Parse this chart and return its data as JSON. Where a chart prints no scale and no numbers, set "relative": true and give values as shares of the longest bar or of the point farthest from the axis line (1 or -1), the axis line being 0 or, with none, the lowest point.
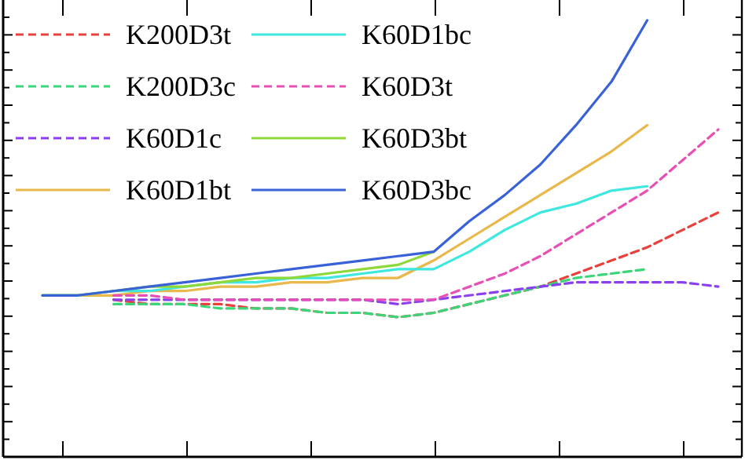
{
  "chart_data": {
    "type": "line",
    "relative": true,
    "legend": "top left",
    "categories": [
      null,
      null,
      null,
      null,
      null,
      null,
      null,
      null,
      null,
      null,
      null,
      null,
      null,
      null,
      null,
      null,
      null,
      null,
      null,
      null
    ],
    "series": [
      {
        "name": "K200D3t",
        "color": "#e8413c",
        "line_style": "dashed",
        "values": [
          null,
          null,
          0.36,
          0.35,
          0.35,
          0.35,
          0.34,
          0.34,
          0.33,
          0.33,
          0.32,
          0.33,
          0.35,
          0.37,
          0.39,
          0.42,
          0.45,
          0.48,
          0.52,
          0.56
        ]
      },
      {
        "name": "K200D3c",
        "color": "#3cd67a",
        "line_style": "dashed",
        "values": [
          null,
          null,
          0.35,
          0.35,
          0.35,
          0.34,
          0.34,
          0.34,
          0.33,
          0.33,
          0.32,
          0.33,
          0.35,
          0.37,
          0.39,
          0.41,
          0.42,
          0.43,
          null,
          null
        ]
      },
      {
        "name": "K60D1c",
        "color": "#8a3ff0",
        "line_style": "dashed",
        "values": [
          null,
          null,
          0.36,
          0.36,
          0.36,
          0.36,
          0.36,
          0.36,
          0.36,
          0.36,
          0.35,
          0.36,
          0.37,
          0.38,
          0.39,
          0.4,
          0.4,
          0.4,
          0.4,
          0.39
        ]
      },
      {
        "name": "K60D1bt",
        "color": "#e8b84a",
        "line_style": "solid",
        "values": [
          0.37,
          0.37,
          0.37,
          0.38,
          0.38,
          0.39,
          0.39,
          0.4,
          0.4,
          0.41,
          0.41,
          0.45,
          0.5,
          0.55,
          0.6,
          0.65,
          0.7,
          0.76,
          null,
          null
        ]
      },
      {
        "name": "K60D1bc",
        "color": "#3ee8e0",
        "line_style": "solid",
        "values": [
          0.37,
          0.37,
          0.38,
          0.38,
          0.39,
          0.4,
          0.4,
          0.41,
          0.41,
          0.42,
          0.43,
          0.43,
          0.47,
          0.52,
          0.56,
          0.58,
          0.61,
          0.62,
          null,
          null
        ]
      },
      {
        "name": "K60D3t",
        "color": "#e84fb5",
        "line_style": "dashed",
        "values": [
          null,
          null,
          0.37,
          0.37,
          0.36,
          0.36,
          0.36,
          0.36,
          0.36,
          0.36,
          0.36,
          0.36,
          0.39,
          0.42,
          0.46,
          0.51,
          0.56,
          0.61,
          0.68,
          0.75
        ]
      },
      {
        "name": "K60D3bt",
        "color": "#8ed83a",
        "line_style": "solid",
        "values": [
          0.37,
          0.37,
          0.38,
          0.39,
          0.39,
          0.4,
          0.41,
          0.41,
          0.42,
          0.43,
          0.44,
          0.47,
          null,
          null,
          null,
          null,
          null,
          null,
          null,
          null
        ]
      },
      {
        "name": "K60D3bc",
        "color": "#3a62d8",
        "line_style": "solid",
        "values": [
          0.37,
          0.37,
          0.38,
          0.39,
          0.4,
          0.41,
          0.42,
          0.43,
          0.44,
          0.45,
          0.46,
          0.47,
          0.54,
          0.6,
          0.67,
          0.76,
          0.86,
          1,
          null,
          null
        ]
      }
    ]
  }
}
